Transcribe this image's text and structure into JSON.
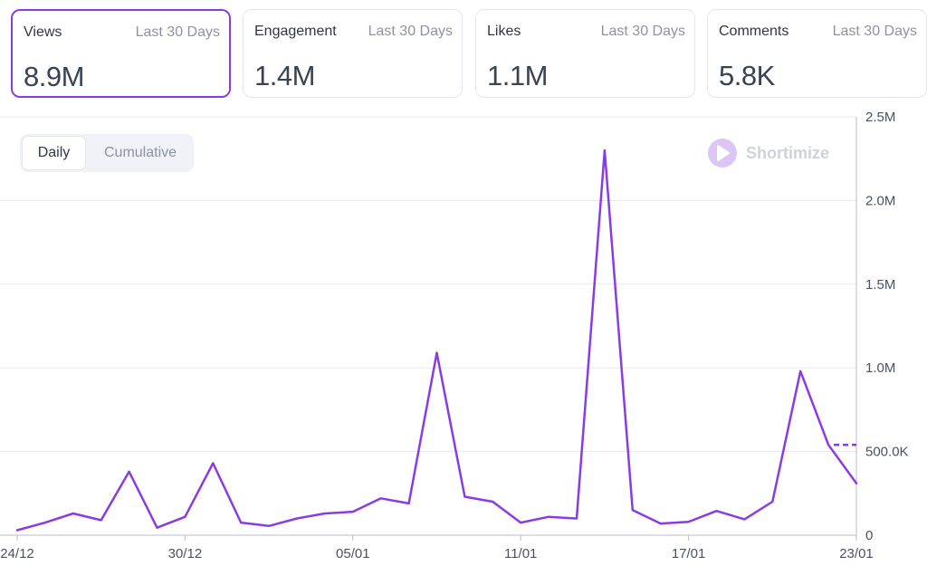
{
  "stats": [
    {
      "label": "Views",
      "period": "Last 30 Days",
      "value": "8.9M",
      "active": true
    },
    {
      "label": "Engagement",
      "period": "Last 30 Days",
      "value": "1.4M",
      "active": false
    },
    {
      "label": "Likes",
      "period": "Last 30 Days",
      "value": "1.1M",
      "active": false
    },
    {
      "label": "Comments",
      "period": "Last 30 Days",
      "value": "5.8K",
      "active": false
    }
  ],
  "toggle": {
    "daily_label": "Daily",
    "cumulative_label": "Cumulative",
    "selected": "Daily"
  },
  "brand": {
    "name": "Shortimize",
    "icon": "shortimize-logo-icon"
  },
  "colors": {
    "accent": "#8a3ce3",
    "grid": "#e6e8ef",
    "axis_text": "#4a5163"
  },
  "chart_data": {
    "type": "line",
    "title": "",
    "xlabel": "",
    "ylabel": "",
    "x_tick_labels": [
      "24/12",
      "30/12",
      "05/01",
      "11/01",
      "17/01",
      "23/01"
    ],
    "y_tick_labels": [
      "2.5M",
      "2.0M",
      "1.5M",
      "1.0M",
      "500.0K",
      "0"
    ],
    "ylim": [
      0,
      2500000
    ],
    "grid": true,
    "series": [
      {
        "values": [
          30000,
          75000,
          130000,
          90000,
          380000,
          45000,
          110000,
          430000,
          75000,
          55000,
          100000,
          130000,
          140000,
          220000,
          190000,
          1090000,
          230000,
          200000,
          75000,
          110000,
          100000,
          2300000,
          150000,
          70000,
          80000,
          145000,
          95000,
          200000,
          980000,
          540000,
          310000
        ]
      }
    ],
    "reference_line": {
      "value": 540000,
      "style": "dashed"
    }
  }
}
